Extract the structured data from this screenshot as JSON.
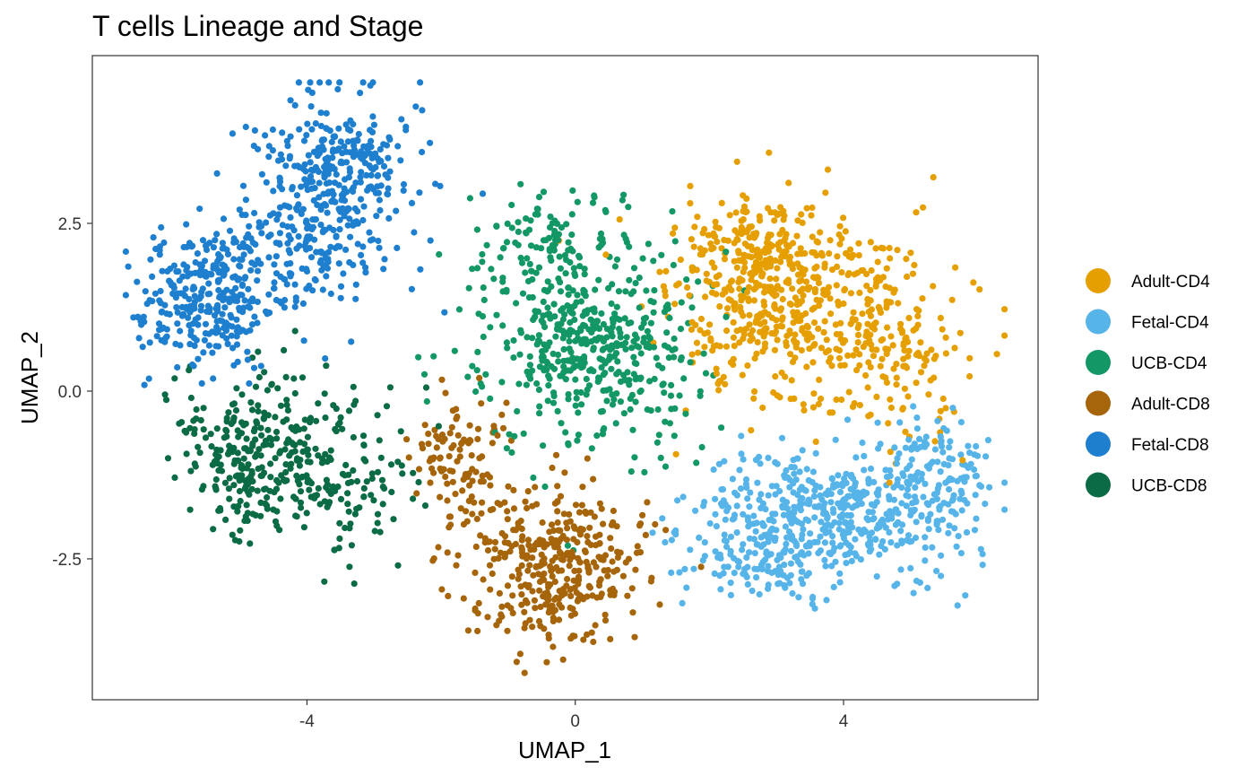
{
  "chart_data": {
    "type": "scatter",
    "title": "T cells Lineage and Stage",
    "xlabel": "UMAP_1",
    "ylabel": "UMAP_2",
    "xlim": [
      -7.2,
      6.9
    ],
    "ylim": [
      -4.6,
      5.0
    ],
    "x_ticks": [
      {
        "value": -4,
        "label": "-4"
      },
      {
        "value": 0,
        "label": "0"
      },
      {
        "value": 4,
        "label": "4"
      }
    ],
    "y_ticks": [
      {
        "value": -2.5,
        "label": "-2.5"
      },
      {
        "value": 0,
        "label": "0.0"
      },
      {
        "value": 2.5,
        "label": "2.5"
      }
    ],
    "grid": false,
    "legend_position": "right",
    "series": [
      {
        "name": "Adult-CD4",
        "color": "#E69F00",
        "clusters": [
          {
            "cx": 3.2,
            "cy": 1.2,
            "sx": 1.15,
            "sy": 0.95,
            "n": 480
          },
          {
            "cx": 2.6,
            "cy": 2.2,
            "sx": 0.7,
            "sy": 0.5,
            "n": 120
          },
          {
            "cx": 4.8,
            "cy": 0.6,
            "sx": 0.7,
            "sy": 0.9,
            "n": 120
          }
        ]
      },
      {
        "name": "Fetal-CD4",
        "color": "#56B4E9",
        "clusters": [
          {
            "cx": 3.8,
            "cy": -1.8,
            "sx": 1.25,
            "sy": 0.65,
            "n": 480
          },
          {
            "cx": 5.4,
            "cy": -1.2,
            "sx": 0.5,
            "sy": 0.6,
            "n": 120
          },
          {
            "cx": 2.8,
            "cy": -2.6,
            "sx": 0.8,
            "sy": 0.4,
            "n": 90
          }
        ]
      },
      {
        "name": "UCB-CD4",
        "color": "#129765",
        "clusters": [
          {
            "cx": 0.2,
            "cy": 0.7,
            "sx": 1.1,
            "sy": 1.0,
            "n": 480
          },
          {
            "cx": -0.3,
            "cy": 2.3,
            "sx": 0.7,
            "sy": 0.5,
            "n": 90
          }
        ]
      },
      {
        "name": "Adult-CD8",
        "color": "#A6650A",
        "clusters": [
          {
            "cx": -0.3,
            "cy": -2.6,
            "sx": 0.95,
            "sy": 0.75,
            "n": 380
          },
          {
            "cx": -1.7,
            "cy": -1.0,
            "sx": 0.5,
            "sy": 0.6,
            "n": 100
          }
        ]
      },
      {
        "name": "Fetal-CD8",
        "color": "#1F7FCF",
        "clusters": [
          {
            "cx": -5.5,
            "cy": 1.4,
            "sx": 0.7,
            "sy": 0.65,
            "n": 320
          },
          {
            "cx": -3.6,
            "cy": 3.3,
            "sx": 0.75,
            "sy": 0.75,
            "n": 300
          },
          {
            "cx": -4.0,
            "cy": 2.0,
            "sx": 0.8,
            "sy": 0.6,
            "n": 150
          }
        ]
      },
      {
        "name": "UCB-CD8",
        "color": "#0B6B45",
        "clusters": [
          {
            "cx": -4.7,
            "cy": -0.9,
            "sx": 0.8,
            "sy": 0.8,
            "n": 300
          },
          {
            "cx": -3.3,
            "cy": -1.4,
            "sx": 0.6,
            "sy": 0.8,
            "n": 100
          }
        ]
      }
    ]
  }
}
